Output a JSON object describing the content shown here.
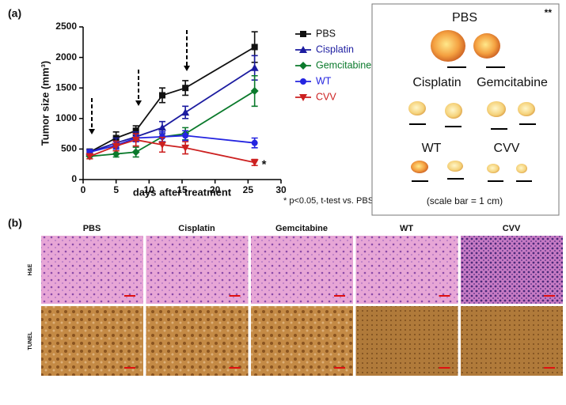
{
  "chart_data": {
    "type": "line",
    "panel_label": "(a)",
    "y_label": "Tumor size (mm³)",
    "x_label": "days after treatment",
    "annotation": "*",
    "footnote": "* p<0.05, t-test vs. PBS",
    "x": [
      1,
      5,
      8,
      12,
      15.5,
      26
    ],
    "xlim": [
      0,
      30
    ],
    "xticks": [
      0,
      5,
      10,
      15,
      20,
      25,
      30
    ],
    "ylim": [
      0,
      2500
    ],
    "yticks": [
      0,
      500,
      1000,
      1500,
      2000,
      2500
    ],
    "series": [
      {
        "name": "PBS",
        "color": "#111111",
        "marker": "square",
        "values": [
          450,
          680,
          800,
          1380,
          1500,
          2170
        ],
        "errors": [
          50,
          100,
          80,
          120,
          120,
          250
        ]
      },
      {
        "name": "Cisplatin",
        "color": "#1c1ca0",
        "marker": "triangle-up",
        "values": [
          450,
          600,
          700,
          850,
          1100,
          1830
        ],
        "errors": [
          40,
          80,
          80,
          100,
          100,
          200
        ]
      },
      {
        "name": "Gemcitabine",
        "color": "#0b7a2c",
        "marker": "diamond",
        "values": [
          380,
          420,
          450,
          700,
          750,
          1450
        ],
        "errors": [
          40,
          50,
          80,
          80,
          100,
          250
        ]
      },
      {
        "name": "WT",
        "color": "#2424e0",
        "marker": "circle",
        "values": [
          450,
          560,
          680,
          700,
          720,
          600
        ],
        "errors": [
          40,
          60,
          60,
          80,
          80,
          80
        ]
      },
      {
        "name": "CVV",
        "color": "#cc2020",
        "marker": "triangle-down",
        "values": [
          380,
          550,
          650,
          570,
          520,
          280
        ],
        "errors": [
          40,
          80,
          100,
          120,
          100,
          50
        ]
      }
    ]
  },
  "photo_panel": {
    "significance": "**",
    "groups": [
      "PBS",
      "Cisplatin",
      "Gemcitabine",
      "WT",
      "CVV"
    ],
    "caption": "(scale bar = 1 cm)"
  },
  "histology": {
    "panel_label": "(b)",
    "columns": [
      "PBS",
      "Cisplatin",
      "Gemcitabine",
      "WT",
      "CVV"
    ],
    "rows": [
      "H&E",
      "TUNEL"
    ]
  }
}
